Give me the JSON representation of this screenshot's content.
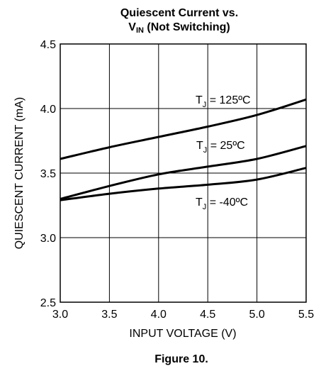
{
  "chart_data": {
    "type": "line",
    "title_line1": "Quiescent Current vs.",
    "title_line2_main": "V",
    "title_line2_sub": "IN",
    "title_line2_rest": " (Not Switching)",
    "xlabel": "INPUT VOLTAGE (V)",
    "ylabel": "QUIESCENT CURRENT (mA)",
    "xlim": [
      3.0,
      5.5
    ],
    "ylim": [
      2.5,
      4.5
    ],
    "x_ticks": [
      3.0,
      3.5,
      4.0,
      4.5,
      5.0,
      5.5
    ],
    "x_tick_labels": [
      "3.0",
      "3.5",
      "4.0",
      "4.5",
      "5.0",
      "5.5"
    ],
    "y_ticks": [
      2.5,
      3.0,
      3.5,
      4.0,
      4.5
    ],
    "y_tick_labels": [
      "2.5",
      "3.0",
      "3.5",
      "4.0",
      "4.5"
    ],
    "grid": true,
    "series": [
      {
        "name_main": "T",
        "name_sub": "J",
        "name_rest": " = 125ºC",
        "x": [
          3.0,
          3.5,
          4.0,
          4.5,
          5.0,
          5.5
        ],
        "y": [
          3.61,
          3.7,
          3.78,
          3.86,
          3.95,
          4.07
        ]
      },
      {
        "name_main": "T",
        "name_sub": "J",
        "name_rest": " = 25ºC",
        "x": [
          3.0,
          3.5,
          4.0,
          4.5,
          5.0,
          5.5
        ],
        "y": [
          3.3,
          3.4,
          3.49,
          3.55,
          3.61,
          3.71
        ]
      },
      {
        "name_main": "T",
        "name_sub": "J",
        "name_rest": " = -40ºC",
        "x": [
          3.0,
          3.5,
          4.0,
          4.5,
          5.0,
          5.5
        ],
        "y": [
          3.29,
          3.34,
          3.38,
          3.41,
          3.45,
          3.54
        ]
      }
    ]
  },
  "caption": "Figure 10."
}
